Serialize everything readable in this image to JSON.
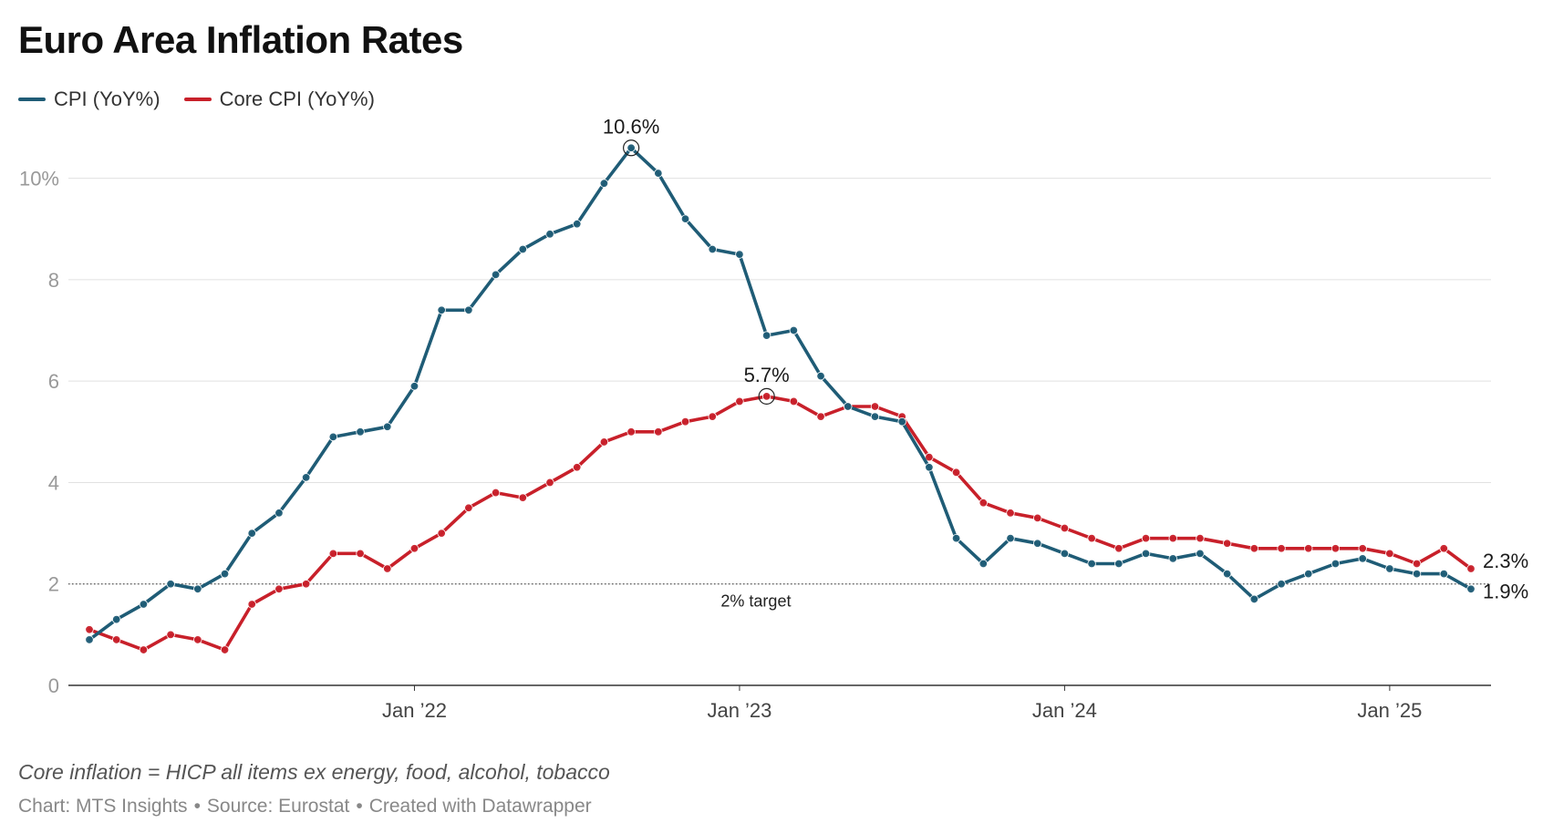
{
  "title": "Euro Area Inflation Rates",
  "chart_data": {
    "type": "line",
    "title": "Euro Area Inflation Rates",
    "x_start": "2021-01",
    "x_end": "2025-04",
    "x_tick_labels": [
      "Jan ’22",
      "Jan ’23",
      "Jan ’24",
      "Jan ’25"
    ],
    "x_tick_index": [
      12,
      24,
      36,
      48
    ],
    "y_ticks": [
      0,
      2,
      4,
      6,
      8,
      10
    ],
    "y_tick_labels": [
      "0",
      "2",
      "4",
      "6",
      "8",
      "10%"
    ],
    "ylim": [
      0,
      11
    ],
    "series": [
      {
        "name": "CPI (YoY%)",
        "color": "#1f5c76",
        "values": [
          0.9,
          1.3,
          1.6,
          2.0,
          1.9,
          2.2,
          3.0,
          3.4,
          4.1,
          4.9,
          5.0,
          5.1,
          5.9,
          7.4,
          7.4,
          8.1,
          8.6,
          8.9,
          9.1,
          9.9,
          10.6,
          10.1,
          9.2,
          8.6,
          8.5,
          6.9,
          7.0,
          6.1,
          5.5,
          5.3,
          5.2,
          4.3,
          2.9,
          2.4,
          2.9,
          2.8,
          2.6,
          2.4,
          2.4,
          2.6,
          2.5,
          2.6,
          2.2,
          1.7,
          2.0,
          2.2,
          2.4,
          2.5,
          2.3,
          2.2,
          2.2,
          1.9
        ],
        "end_label": "1.9%"
      },
      {
        "name": "Core CPI (YoY%)",
        "color": "#c8202a",
        "values": [
          1.1,
          0.9,
          0.7,
          1.0,
          0.9,
          0.7,
          1.6,
          1.9,
          2.0,
          2.6,
          2.6,
          2.3,
          2.7,
          3.0,
          3.5,
          3.8,
          3.7,
          4.0,
          4.3,
          4.8,
          5.0,
          5.0,
          5.2,
          5.3,
          5.6,
          5.7,
          5.6,
          5.3,
          5.5,
          5.5,
          5.3,
          4.5,
          4.2,
          3.6,
          3.4,
          3.3,
          3.1,
          2.9,
          2.7,
          2.9,
          2.9,
          2.9,
          2.8,
          2.7,
          2.7,
          2.7,
          2.7,
          2.7,
          2.6,
          2.4,
          2.7,
          2.3
        ],
        "end_label": "2.3%"
      }
    ],
    "annotations": [
      {
        "series": 0,
        "index": 20,
        "label": "10.6%"
      },
      {
        "series": 1,
        "index": 25,
        "label": "5.7%"
      }
    ],
    "reference_line": {
      "value": 2,
      "label": "2% target",
      "style": "dotted",
      "label_index": 24
    },
    "legend_position": "top-left",
    "grid": true
  },
  "footer": {
    "note": "Core inflation = HICP all items ex energy, food, alcohol, tobacco",
    "credit_chart": "Chart: MTS Insights",
    "credit_source": "Source: Eurostat",
    "credit_tool": "Created with Datawrapper",
    "separator": "•"
  }
}
